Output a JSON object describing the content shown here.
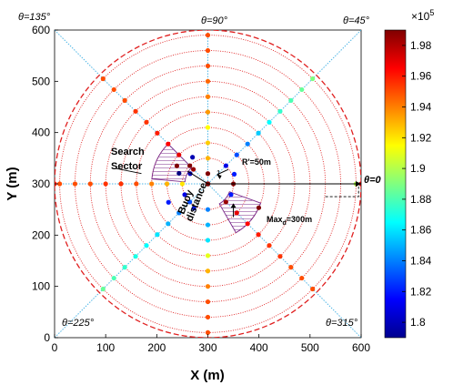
{
  "chart_data": {
    "type": "scatter",
    "title": "",
    "xlabel": "X (m)",
    "ylabel": "Y (m)",
    "xlim": [
      0,
      600
    ],
    "ylim": [
      0,
      600
    ],
    "xticks": [
      "0",
      "100",
      "200",
      "300",
      "400",
      "500",
      "600"
    ],
    "yticks": [
      "0",
      "100",
      "200",
      "300",
      "400",
      "500",
      "600"
    ],
    "grid": false,
    "center": [
      300,
      300
    ],
    "rings_radius_m": [
      50,
      80,
      110,
      140,
      170,
      200,
      230,
      260,
      290
    ],
    "outer_boundary_radius_m": 300,
    "radial_lines_deg": [
      0,
      45,
      90,
      135,
      225,
      315
    ],
    "angle_labels": {
      "a0": "θ=0",
      "a45": "θ=45°",
      "a90": "θ=90°",
      "a135": "θ=135°",
      "a225": "θ=225°",
      "a315": "θ=315°"
    },
    "annotations": {
      "search_sector": [
        "Search",
        "Sector"
      ],
      "buoy_distance": [
        "Buoy",
        "distance"
      ],
      "r_prime": "R'=50m",
      "max_prefix": "Max",
      "max_sub": "d",
      "max_suffix": "=300m",
      "tiny_label": "1"
    },
    "colorbar": {
      "exponent_label": "×10",
      "exponent_power": "5",
      "min": 1.79,
      "max": 1.99,
      "ticks": [
        "1.8",
        "1.82",
        "1.84",
        "1.86",
        "1.88",
        "1.9",
        "1.92",
        "1.94",
        "1.96",
        "1.98"
      ],
      "tick_values": [
        1.8,
        1.82,
        1.84,
        1.86,
        1.88,
        1.9,
        1.92,
        1.94,
        1.96,
        1.98
      ]
    },
    "point_series": [
      {
        "angle_deg": 0,
        "points": [
          {
            "r": 50,
            "v": 1.99
          },
          {
            "r": 290,
            "v": 1.9
          },
          {
            "r": 300,
            "v": 1.98
          }
        ]
      },
      {
        "angle_deg": 45,
        "points": [
          {
            "r": 50,
            "v": 1.81
          },
          {
            "r": 80,
            "v": 1.83
          },
          {
            "r": 110,
            "v": 1.84
          },
          {
            "r": 140,
            "v": 1.855
          },
          {
            "r": 170,
            "v": 1.865
          },
          {
            "r": 200,
            "v": 1.875
          },
          {
            "r": 230,
            "v": 1.88
          },
          {
            "r": 260,
            "v": 1.885
          },
          {
            "r": 290,
            "v": 1.89
          }
        ]
      },
      {
        "angle_deg": 90,
        "points": [
          {
            "r": 20,
            "v": 1.99
          },
          {
            "r": 50,
            "v": 1.93
          },
          {
            "r": 80,
            "v": 1.925
          },
          {
            "r": 110,
            "v": 1.915
          },
          {
            "r": 140,
            "v": 1.935
          },
          {
            "r": 170,
            "v": 1.94
          },
          {
            "r": 200,
            "v": 1.945
          },
          {
            "r": 230,
            "v": 1.95
          },
          {
            "r": 260,
            "v": 1.95
          },
          {
            "r": 290,
            "v": 1.95
          }
        ]
      },
      {
        "angle_deg": 135,
        "points": [
          {
            "r": 40,
            "v": 1.985
          },
          {
            "r": 50,
            "v": 1.99
          },
          {
            "r": 80,
            "v": 1.97
          },
          {
            "r": 110,
            "v": 1.965
          },
          {
            "r": 140,
            "v": 1.96
          },
          {
            "r": 170,
            "v": 1.955
          },
          {
            "r": 200,
            "v": 1.955
          },
          {
            "r": 230,
            "v": 1.95
          },
          {
            "r": 260,
            "v": 1.95
          },
          {
            "r": 290,
            "v": 1.95
          }
        ]
      },
      {
        "angle_deg": 180,
        "points": [
          {
            "r": 50,
            "v": 1.92
          },
          {
            "r": 80,
            "v": 1.93
          },
          {
            "r": 110,
            "v": 1.94
          },
          {
            "r": 140,
            "v": 1.95
          },
          {
            "r": 170,
            "v": 1.955
          },
          {
            "r": 200,
            "v": 1.955
          },
          {
            "r": 230,
            "v": 1.95
          },
          {
            "r": 260,
            "v": 1.95
          },
          {
            "r": 290,
            "v": 1.95
          },
          {
            "r": 300,
            "v": 1.96
          }
        ]
      },
      {
        "angle_deg": 225,
        "points": [
          {
            "r": 50,
            "v": 1.83
          },
          {
            "r": 80,
            "v": 1.84
          },
          {
            "r": 110,
            "v": 1.85
          },
          {
            "r": 140,
            "v": 1.86
          },
          {
            "r": 170,
            "v": 1.865
          },
          {
            "r": 200,
            "v": 1.87
          },
          {
            "r": 230,
            "v": 1.875
          },
          {
            "r": 260,
            "v": 1.88
          },
          {
            "r": 290,
            "v": 1.885
          }
        ]
      },
      {
        "angle_deg": 270,
        "points": [
          {
            "r": 50,
            "v": 1.84
          },
          {
            "r": 80,
            "v": 1.85
          },
          {
            "r": 110,
            "v": 1.86
          },
          {
            "r": 140,
            "v": 1.91
          },
          {
            "r": 170,
            "v": 1.93
          },
          {
            "r": 200,
            "v": 1.94
          },
          {
            "r": 230,
            "v": 1.95
          },
          {
            "r": 260,
            "v": 1.95
          },
          {
            "r": 290,
            "v": 1.95
          }
        ]
      },
      {
        "angle_deg": 315,
        "points": [
          {
            "r": 50,
            "v": 1.985
          },
          {
            "r": 80,
            "v": 1.97
          },
          {
            "r": 110,
            "v": 1.965
          },
          {
            "r": 140,
            "v": 1.96
          },
          {
            "r": 170,
            "v": 1.955
          },
          {
            "r": 200,
            "v": 1.955
          },
          {
            "r": 230,
            "v": 1.95
          },
          {
            "r": 260,
            "v": 1.95
          },
          {
            "r": 290,
            "v": 1.95
          }
        ]
      },
      {
        "angle_deg": 150,
        "points": [
          {
            "r": 70,
            "v": 1.99
          },
          {
            "r": 40,
            "v": 1.8
          }
        ]
      },
      {
        "angle_deg": 160,
        "points": [
          {
            "r": 60,
            "v": 1.79
          }
        ]
      },
      {
        "angle_deg": 205,
        "points": [
          {
            "r": 50,
            "v": 1.81
          },
          {
            "r": 85,
            "v": 1.82
          }
        ]
      },
      {
        "angle_deg": 335,
        "points": [
          {
            "r": 50,
            "v": 1.82
          },
          {
            "r": 110,
            "v": 1.99
          }
        ]
      },
      {
        "angle_deg": 20,
        "points": [
          {
            "r": 55,
            "v": 1.82
          }
        ]
      },
      {
        "angle_deg": 120,
        "points": [
          {
            "r": 60,
            "v": 1.8
          }
        ]
      },
      {
        "angle_deg": 240,
        "points": [
          {
            "r": 55,
            "v": 1.82
          }
        ]
      }
    ]
  }
}
